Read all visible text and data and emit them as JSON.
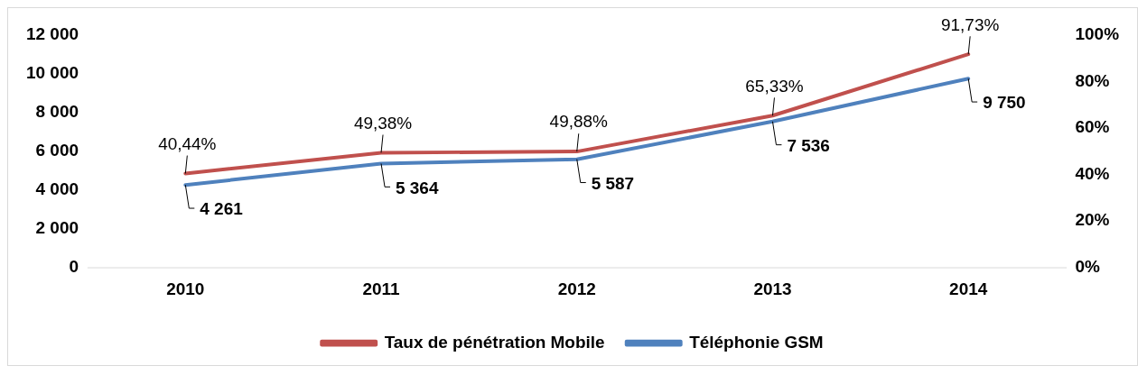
{
  "chart_data": {
    "type": "line",
    "categories": [
      "2010",
      "2011",
      "2012",
      "2013",
      "2014"
    ],
    "series": [
      {
        "name": "Téléphonie GSM",
        "color": "#4f81bd",
        "values": [
          4261,
          5364,
          5587,
          7536,
          9750
        ],
        "value_labels": [
          "4 261",
          "5 364",
          "5 587",
          "7 536",
          "9 750"
        ]
      },
      {
        "name": "Taux de pénétration Mobile",
        "color": "#c0504d",
        "axis": "y2",
        "values": [
          40.44,
          49.38,
          49.88,
          65.33,
          91.73
        ],
        "value_labels": [
          "40,44%",
          "49,38%",
          "49,88%",
          "65,33%",
          "91,73%"
        ]
      }
    ],
    "ylim": [
      0,
      12000
    ],
    "yticks": [
      {
        "value": 0,
        "label": "0"
      },
      {
        "value": 2000,
        "label": "2 000"
      },
      {
        "value": 4000,
        "label": "4 000"
      },
      {
        "value": 6000,
        "label": "6 000"
      },
      {
        "value": 8000,
        "label": "8 000"
      },
      {
        "value": 10000,
        "label": "10 000"
      },
      {
        "value": 12000,
        "label": "12 000"
      }
    ],
    "y2lim": [
      0,
      100
    ],
    "y2ticks": [
      {
        "value": 0,
        "label": "0%"
      },
      {
        "value": 20,
        "label": "20%"
      },
      {
        "value": 40,
        "label": "40%"
      },
      {
        "value": 60,
        "label": "60%"
      },
      {
        "value": 80,
        "label": "80%"
      },
      {
        "value": 100,
        "label": "100%"
      }
    ],
    "grid": false,
    "legend": "bottom",
    "marker": "none",
    "line_style": "solid"
  }
}
